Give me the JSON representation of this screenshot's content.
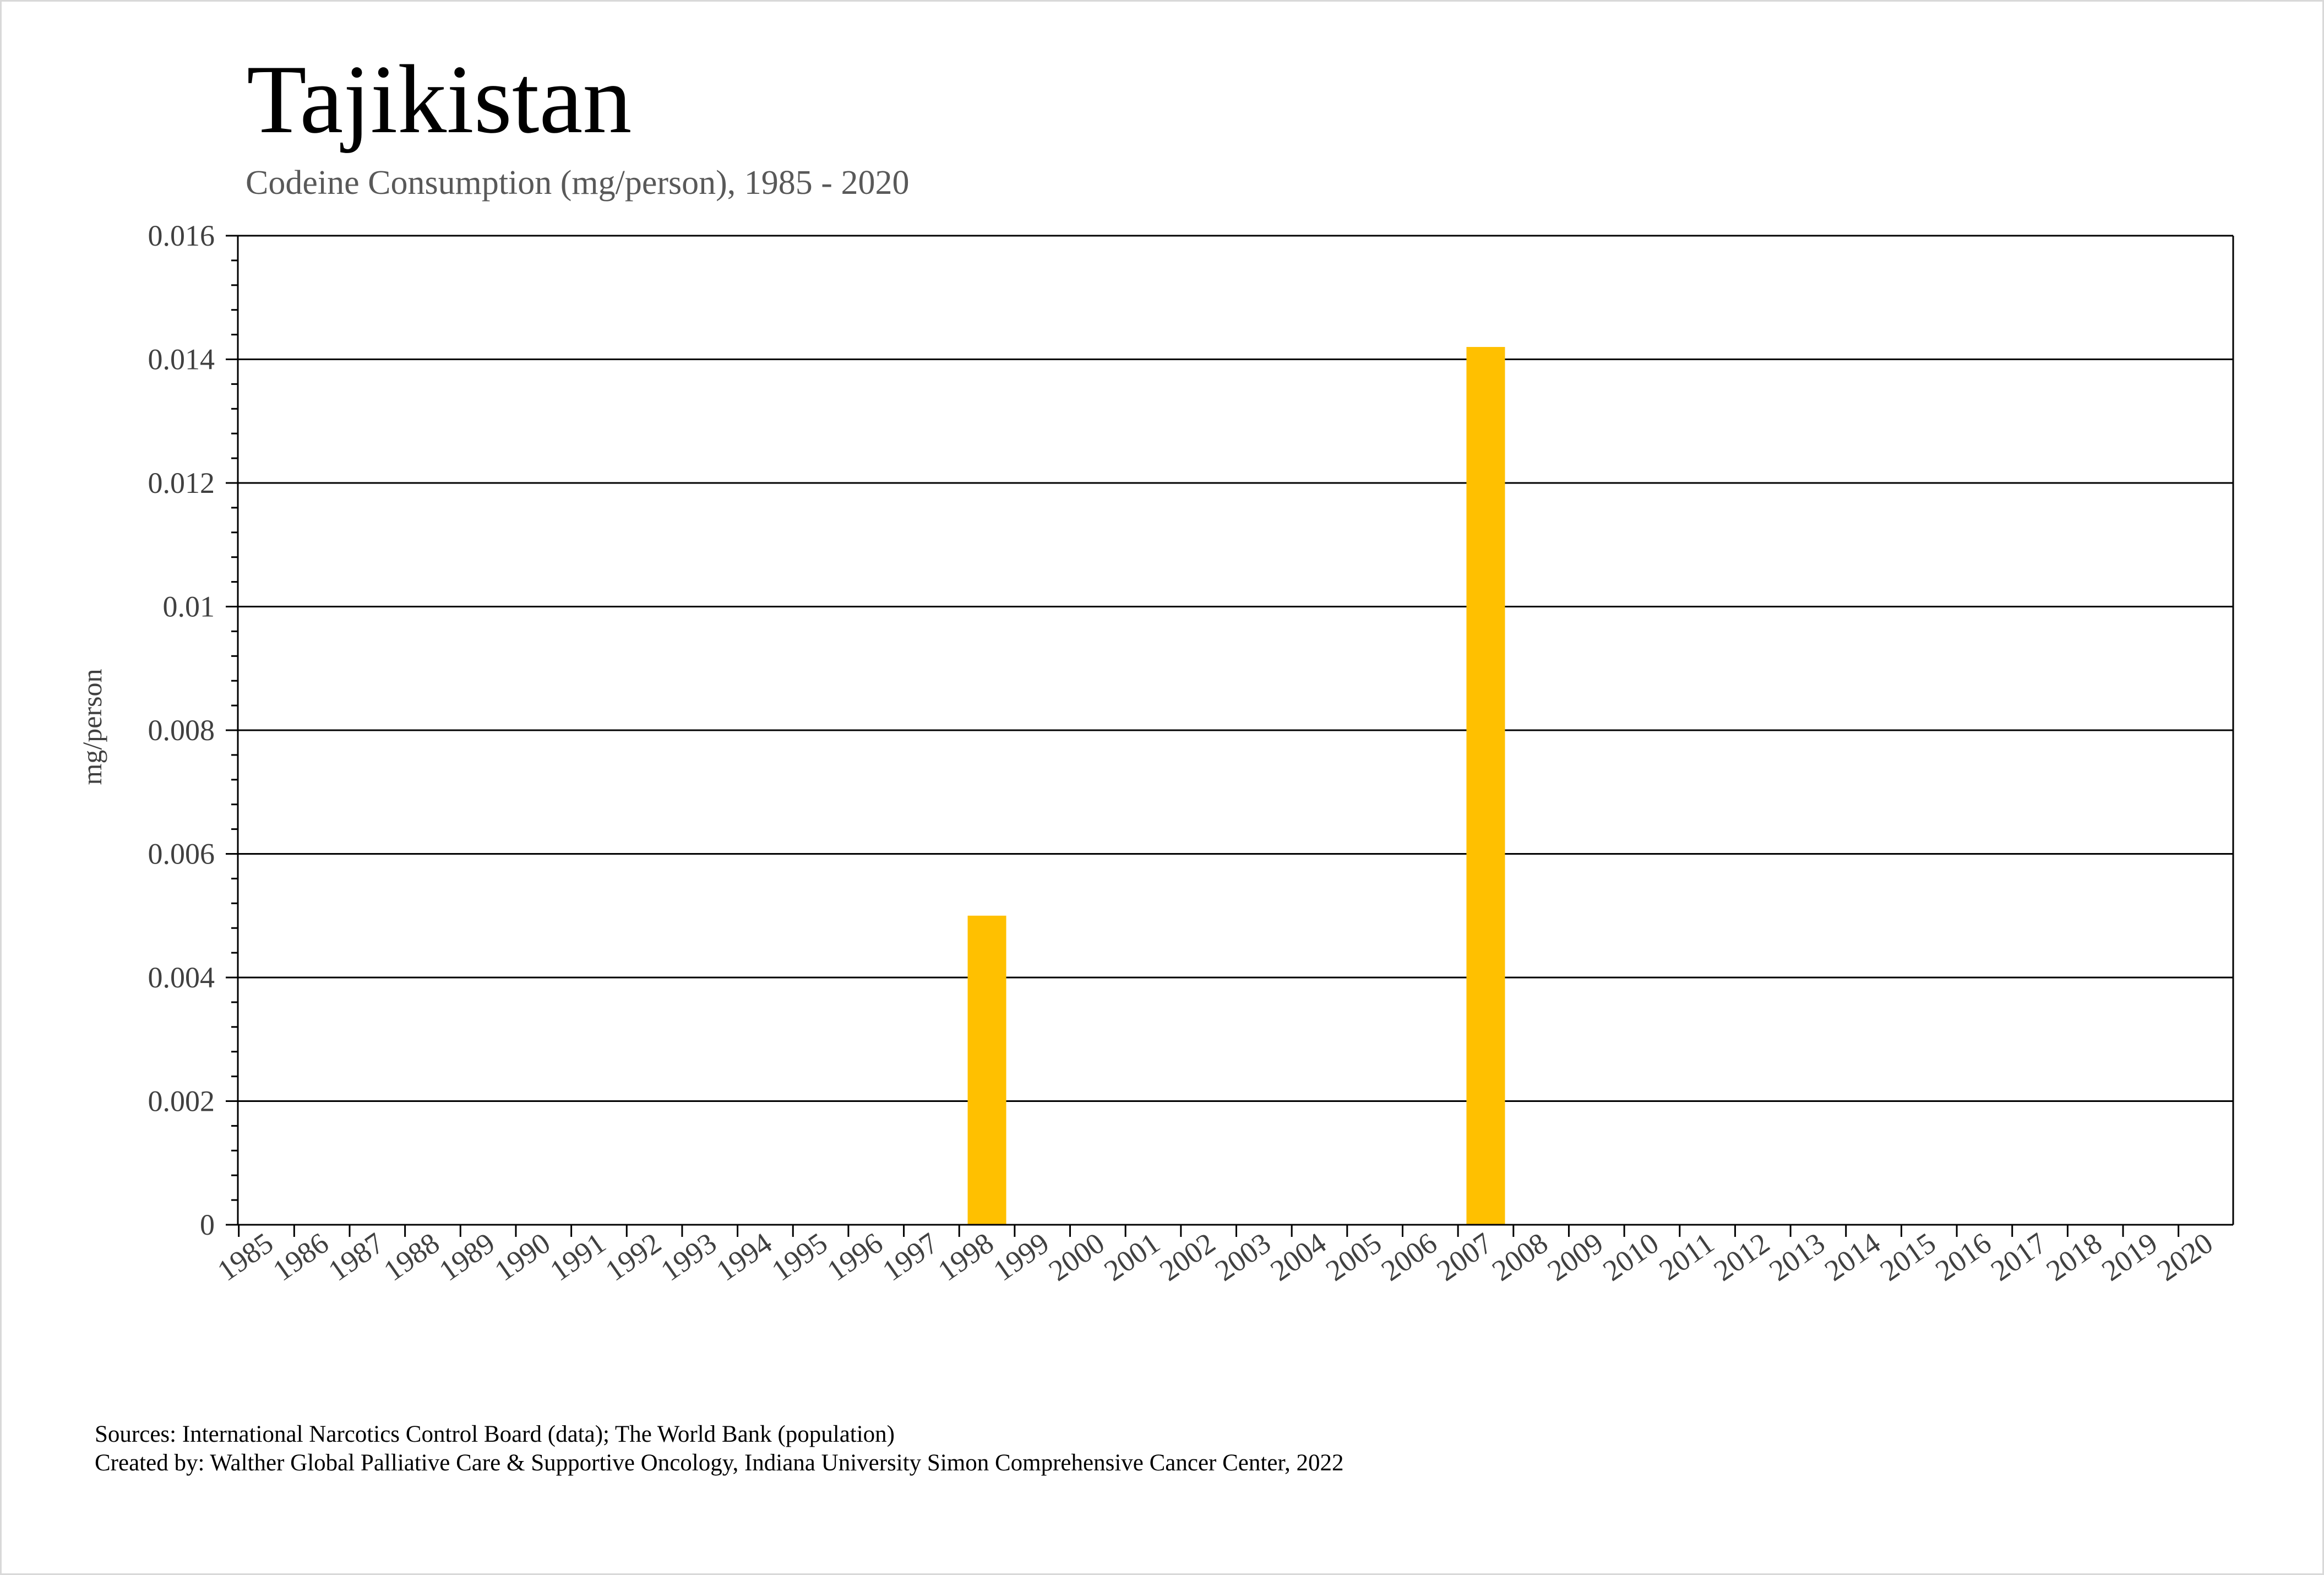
{
  "chart_data": {
    "type": "bar",
    "title": "Tajikistan",
    "subtitle": "Codeine Consumption (mg/person), 1985 - 2020",
    "xlabel": "",
    "ylabel": "mg/person",
    "ylim": [
      0,
      0.016
    ],
    "yticks": [
      "0",
      "0.002",
      "0.004",
      "0.006",
      "0.008",
      "0.01",
      "0.012",
      "0.014",
      "0.016"
    ],
    "ytick_values": [
      0,
      0.002,
      0.004,
      0.006,
      0.008,
      0.01,
      0.012,
      0.014,
      0.016
    ],
    "categories": [
      "1985",
      "1986",
      "1987",
      "1988",
      "1989",
      "1990",
      "1991",
      "1992",
      "1993",
      "1994",
      "1995",
      "1996",
      "1997",
      "1998",
      "1999",
      "2000",
      "2001",
      "2002",
      "2003",
      "2004",
      "2005",
      "2006",
      "2007",
      "2008",
      "2009",
      "2010",
      "2011",
      "2012",
      "2013",
      "2014",
      "2015",
      "2016",
      "2017",
      "2018",
      "2019",
      "2020"
    ],
    "values": [
      0,
      0,
      0,
      0,
      0,
      0,
      0,
      0,
      0,
      0,
      0,
      0,
      0,
      0.005,
      0,
      0,
      0,
      0,
      0,
      0,
      0,
      0,
      0.0142,
      0,
      0,
      0,
      0,
      0,
      0,
      0,
      0,
      0,
      0,
      0,
      0,
      0
    ],
    "bar_color": "#FFC000",
    "grid": true,
    "legend": "none"
  },
  "footer": {
    "sources": "Sources: International Narcotics Control Board (data); The World Bank (population)",
    "created_by": "Created by: Walther Global Palliative Care & Supportive Oncology, Indiana University Simon Comprehensive Cancer Center, 2022"
  }
}
